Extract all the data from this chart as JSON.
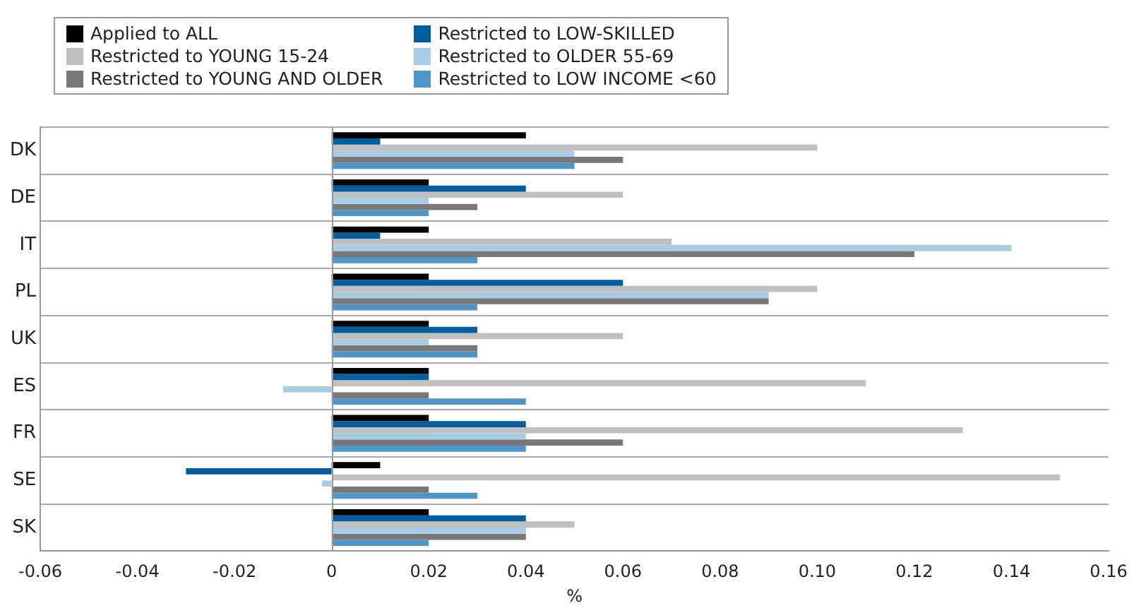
{
  "chart_data": {
    "type": "bar",
    "orientation": "horizontal",
    "xlabel": "%",
    "categories": [
      "DK",
      "DE",
      "IT",
      "PL",
      "UK",
      "ES",
      "FR",
      "SE",
      "SK"
    ],
    "series": [
      {
        "name": "Applied to ALL",
        "color": "#000000",
        "values": [
          0.04,
          0.02,
          0.02,
          0.02,
          0.02,
          0.02,
          0.02,
          0.01,
          0.02
        ]
      },
      {
        "name": "Restricted to LOW-SKILLED",
        "color": "#005ea0",
        "values": [
          0.01,
          0.04,
          0.01,
          0.06,
          0.03,
          0.02,
          0.04,
          -0.03,
          0.04
        ]
      },
      {
        "name": "Restricted to YOUNG 15-24",
        "color": "#c0c0c0",
        "values": [
          0.1,
          0.06,
          0.07,
          0.1,
          0.06,
          0.11,
          0.13,
          0.15,
          0.05
        ]
      },
      {
        "name": "Restricted to OLDER 55-69",
        "color": "#a8cce4",
        "values": [
          0.05,
          0.02,
          0.14,
          0.09,
          0.02,
          -0.01,
          0.04,
          -0.002,
          0.04
        ]
      },
      {
        "name": "Restricted to YOUNG AND OLDER",
        "color": "#787878",
        "values": [
          0.06,
          0.03,
          0.12,
          0.09,
          0.03,
          0.02,
          0.06,
          0.02,
          0.04
        ]
      },
      {
        "name": "Restricted to LOW INCOME <60",
        "color": "#4f95c8",
        "values": [
          0.05,
          0.02,
          0.03,
          0.03,
          0.03,
          0.04,
          0.04,
          0.03,
          0.02
        ]
      }
    ],
    "xlim": [
      -0.06,
      0.16
    ],
    "xticks": [
      -0.06,
      -0.04,
      -0.02,
      0,
      0.02,
      0.04,
      0.06,
      0.08,
      {
        "value": 0.1,
        "label": "0.10"
      },
      0.12,
      0.14,
      0.16
    ],
    "grid": "y",
    "legend": "top left"
  }
}
